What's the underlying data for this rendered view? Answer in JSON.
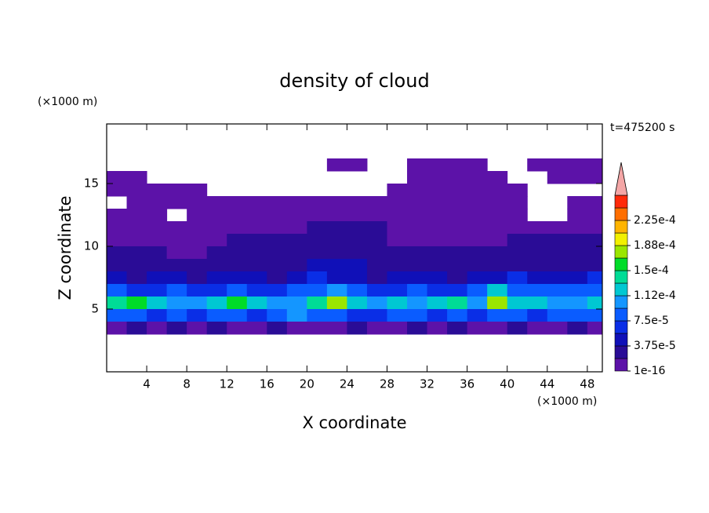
{
  "chart_data": {
    "type": "contour",
    "title": "density of cloud",
    "x_label": "X coordinate",
    "y_label": "Z coordinate",
    "x_unit": "(×1000 m)",
    "y_unit": "(×1000 m)",
    "annotation": "t=475200 s",
    "xlim": [
      0,
      49.5
    ],
    "ylim": [
      0,
      19.75
    ],
    "xticks": [
      4,
      8,
      12,
      16,
      20,
      24,
      28,
      32,
      36,
      40,
      44,
      48
    ],
    "yticks": [
      5,
      10,
      15
    ],
    "x": [
      1,
      3,
      5,
      7,
      9,
      11,
      13,
      15,
      17,
      19,
      21,
      23,
      25,
      27,
      29,
      31,
      33,
      35,
      37,
      39,
      41,
      43,
      45,
      47,
      49
    ],
    "z": [
      16.5,
      15.5,
      14.5,
      13.5,
      12.5,
      11.5,
      10.5,
      9.5,
      8.5,
      7.5,
      6.5,
      5.5,
      4.5,
      3.5
    ],
    "values": [
      [
        null,
        null,
        null,
        null,
        null,
        null,
        null,
        null,
        null,
        null,
        null,
        1e-05,
        1e-05,
        null,
        null,
        1e-05,
        1e-05,
        1e-05,
        1e-05,
        null,
        null,
        1e-05,
        1e-05,
        1e-05,
        1e-05
      ],
      [
        1e-05,
        1e-05,
        null,
        null,
        null,
        null,
        null,
        null,
        null,
        null,
        null,
        null,
        null,
        null,
        null,
        1e-05,
        1e-05,
        1e-05,
        1e-05,
        1e-05,
        null,
        null,
        1e-05,
        1e-05,
        1e-05
      ],
      [
        1e-05,
        1e-05,
        1e-05,
        1e-05,
        1e-05,
        null,
        null,
        null,
        null,
        null,
        null,
        null,
        null,
        null,
        1e-05,
        1e-05,
        1e-05,
        1e-05,
        1e-05,
        1e-05,
        1e-05,
        null,
        null,
        null,
        null
      ],
      [
        null,
        1e-05,
        1e-05,
        1e-05,
        1e-05,
        1e-05,
        1e-05,
        1e-05,
        1e-05,
        1e-05,
        1e-05,
        1e-05,
        1e-05,
        1e-05,
        1e-05,
        1e-05,
        1e-05,
        1e-05,
        1e-05,
        1e-05,
        1e-05,
        null,
        null,
        1e-05,
        1e-05
      ],
      [
        1e-05,
        1e-05,
        1e-05,
        null,
        1e-05,
        1e-05,
        1e-05,
        1e-05,
        1e-05,
        1e-05,
        1e-05,
        1e-05,
        1e-05,
        1e-05,
        1e-05,
        1e-05,
        1e-05,
        1e-05,
        1e-05,
        1e-05,
        1e-05,
        null,
        null,
        1e-05,
        1e-05
      ],
      [
        1e-05,
        1e-05,
        1e-05,
        1e-05,
        1e-05,
        1e-05,
        1e-05,
        1e-05,
        1e-05,
        1e-05,
        2e-05,
        2e-05,
        2e-05,
        2e-05,
        1e-05,
        1e-05,
        1e-05,
        1e-05,
        1e-05,
        1e-05,
        1e-05,
        1e-05,
        1e-05,
        1e-05,
        1e-05
      ],
      [
        1e-05,
        1e-05,
        1e-05,
        1e-05,
        1e-05,
        1e-05,
        2e-05,
        2e-05,
        2e-05,
        2e-05,
        2e-05,
        2e-05,
        2e-05,
        2e-05,
        1e-05,
        1e-05,
        1e-05,
        1e-05,
        1e-05,
        1e-05,
        2e-05,
        2e-05,
        2e-05,
        2e-05,
        2e-05
      ],
      [
        2e-05,
        2e-05,
        2e-05,
        1e-05,
        1e-05,
        2e-05,
        2e-05,
        2e-05,
        2e-05,
        2e-05,
        2e-05,
        3e-05,
        3e-05,
        3e-05,
        2e-05,
        2e-05,
        2e-05,
        2e-05,
        2e-05,
        2e-05,
        2e-05,
        2e-05,
        2e-05,
        2e-05,
        2e-05
      ],
      [
        2e-05,
        2e-05,
        2e-05,
        2e-05,
        2e-05,
        3e-05,
        3e-05,
        3e-05,
        3e-05,
        3e-05,
        4e-05,
        4e-05,
        4e-05,
        3e-05,
        3e-05,
        3e-05,
        3e-05,
        3e-05,
        2e-05,
        2e-05,
        3e-05,
        3e-05,
        3e-05,
        3e-05,
        3e-05
      ],
      [
        4e-05,
        3e-05,
        4e-05,
        5e-05,
        3e-05,
        4e-05,
        5e-05,
        4e-05,
        3e-05,
        4e-05,
        6e-05,
        5e-05,
        4e-05,
        3e-05,
        4e-05,
        5e-05,
        4e-05,
        3e-05,
        4e-05,
        5e-05,
        6e-05,
        5e-05,
        4e-05,
        5e-05,
        6e-05
      ],
      [
        8e-05,
        6e-05,
        7e-05,
        9e-05,
        6e-05,
        7e-05,
        8e-05,
        6e-05,
        7e-05,
        8e-05,
        9e-05,
        0.00011,
        9e-05,
        7e-05,
        6e-05,
        8e-05,
        7e-05,
        6e-05,
        8e-05,
        0.00012,
        9e-05,
        8e-05,
        9e-05,
        8e-05,
        9e-05
      ],
      [
        0.00014,
        0.00016,
        0.00012,
        0.0001,
        0.00011,
        0.00013,
        0.00015,
        0.00012,
        0.0001,
        0.00011,
        0.00014,
        0.00018,
        0.00013,
        0.00011,
        0.00012,
        0.0001,
        0.00012,
        0.00014,
        0.00011,
        0.00017,
        0.00013,
        0.00012,
        0.0001,
        0.00011,
        0.00013
      ],
      [
        8e-05,
        9e-05,
        7e-05,
        8e-05,
        6e-05,
        8e-05,
        9e-05,
        7e-05,
        8e-05,
        0.0001,
        9e-05,
        8e-05,
        7e-05,
        6e-05,
        8e-05,
        9e-05,
        7e-05,
        8e-05,
        7e-05,
        9e-05,
        8e-05,
        7e-05,
        8e-05,
        9e-05,
        8e-05
      ],
      [
        1e-05,
        2e-05,
        1e-05,
        2e-05,
        1e-05,
        2e-05,
        1e-05,
        1e-05,
        2e-05,
        1e-05,
        1e-05,
        1e-05,
        2e-05,
        1e-05,
        1e-05,
        2e-05,
        1e-05,
        2e-05,
        1e-05,
        1e-05,
        2e-05,
        1e-05,
        1e-05,
        2e-05,
        1e-05
      ]
    ],
    "levels": [
      1e-16,
      1.875e-05,
      3.75e-05,
      5.625e-05,
      7.5e-05,
      9.375e-05,
      0.000112,
      0.00013125,
      0.00015,
      0.00016875,
      0.000188,
      0.00020625,
      0.000225,
      0.00024375,
      0.0002625
    ],
    "colors": [
      "#5c12a8",
      "#2a0c96",
      "#1010b8",
      "#0a2ee6",
      "#0a5cff",
      "#1496ff",
      "#00c8d2",
      "#00dc96",
      "#00dc28",
      "#9ae600",
      "#f2f000",
      "#ffb400",
      "#ff6e00",
      "#ff2a0a"
    ],
    "extend_color": "#f4a6a6",
    "colorbar_ticks": [
      {
        "value": 1e-16,
        "label": "1e-16"
      },
      {
        "value": 3.75e-05,
        "label": "3.75e-5"
      },
      {
        "value": 7.5e-05,
        "label": "7.5e-5"
      },
      {
        "value": 0.000112,
        "label": "1.12e-4"
      },
      {
        "value": 0.00015,
        "label": "1.5e-4"
      },
      {
        "value": 0.000188,
        "label": "1.88e-4"
      },
      {
        "value": 0.000225,
        "label": "2.25e-4"
      }
    ]
  }
}
